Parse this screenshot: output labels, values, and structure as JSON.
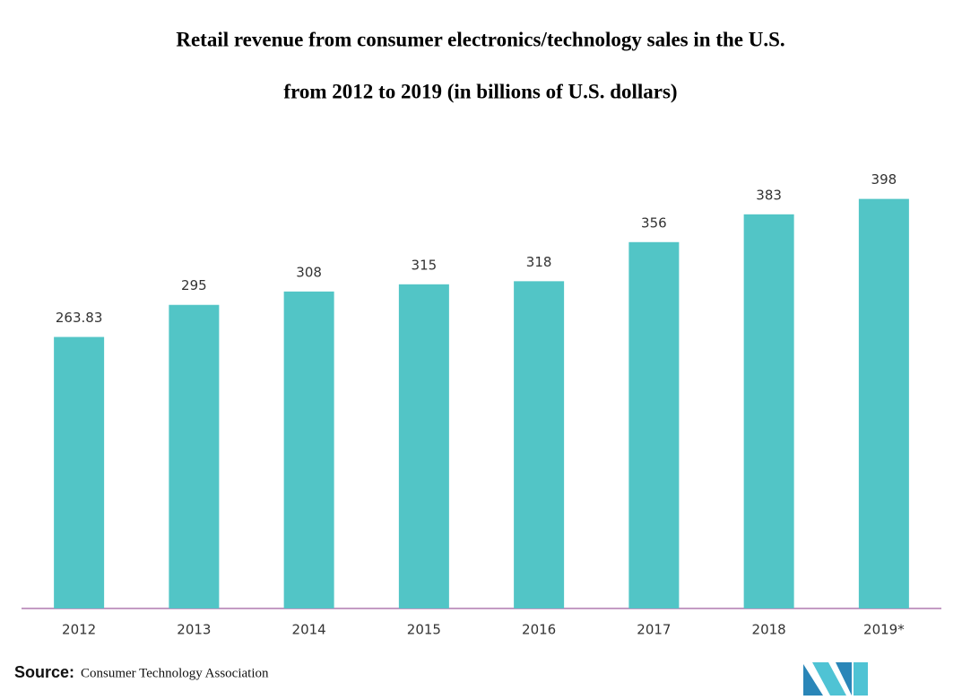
{
  "chart_data": {
    "type": "bar",
    "title": "Retail revenue from consumer electronics/technology sales in the U.S.",
    "subtitle": "from 2012 to 2019 (in billions of U.S. dollars)",
    "categories": [
      "2012",
      "2013",
      "2014",
      "2015",
      "2016",
      "2017",
      "2018",
      "2019*"
    ],
    "values": [
      263.83,
      295,
      308,
      315,
      318,
      356,
      383,
      398
    ],
    "color": "#52c5c6",
    "ylim": [
      0,
      450
    ],
    "source": {
      "label": "Source:",
      "text": "Consumer Technology Association"
    }
  }
}
